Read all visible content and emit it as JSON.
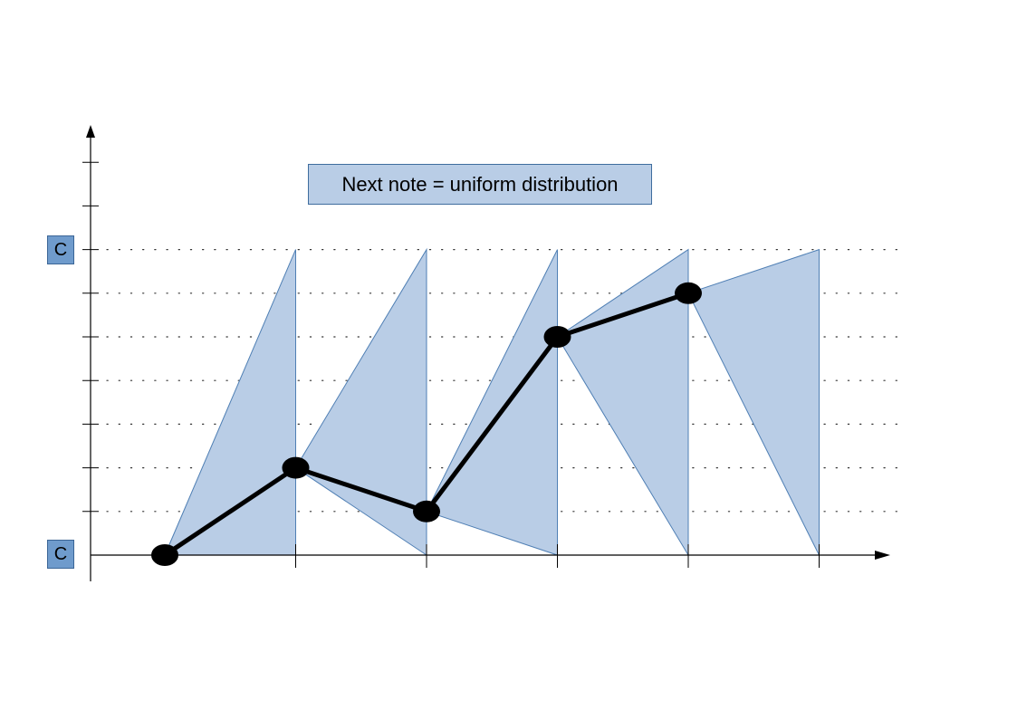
{
  "title": "Next note = uniform distribution",
  "axis_labels": {
    "top_note": "C",
    "bottom_note": "C"
  },
  "colors": {
    "region_fill": "#b9cde6",
    "region_stroke": "#4f7fb4",
    "path": "#000000",
    "note_box": "#6f9bcc",
    "grid_dots": "#333333"
  },
  "chart_data": {
    "type": "line",
    "x": [
      0,
      1,
      2,
      3,
      4
    ],
    "values": [
      0,
      2,
      1,
      5,
      6
    ],
    "y_range": [
      0,
      7
    ],
    "x_ticks": 5,
    "y_ticks_above_range": 2,
    "grid": "dotted",
    "distributions": [
      {
        "from_step": 0,
        "from_value": 0,
        "range": [
          0,
          7
        ]
      },
      {
        "from_step": 1,
        "from_value": 2,
        "range": [
          0,
          7
        ]
      },
      {
        "from_step": 2,
        "from_value": 1,
        "range": [
          0,
          7
        ]
      },
      {
        "from_step": 3,
        "from_value": 5,
        "range": [
          0,
          7
        ]
      },
      {
        "from_step": 4,
        "from_value": 6,
        "range": [
          0,
          7
        ]
      }
    ]
  }
}
